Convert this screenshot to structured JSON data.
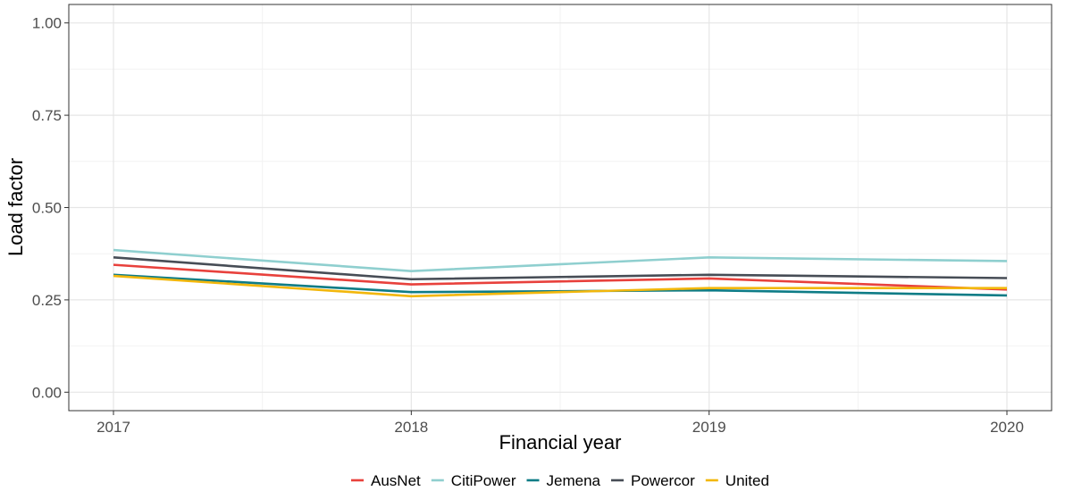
{
  "chart_data": {
    "type": "line",
    "xlabel": "Financial year",
    "ylabel": "Load factor",
    "x": [
      2017,
      2018,
      2019,
      2020
    ],
    "x_tick_labels": [
      "2017",
      "2018",
      "2019",
      "2020"
    ],
    "ylim": [
      0,
      1
    ],
    "y_ticks": [
      0,
      0.25,
      0.5,
      0.75,
      1
    ],
    "y_tick_labels": [
      "0.00",
      "0.25",
      "0.50",
      "0.75",
      "1.00"
    ],
    "grid": true,
    "legend_position": "bottom",
    "series": [
      {
        "name": "AusNet",
        "color": "#e8413c",
        "values": [
          0.345,
          0.292,
          0.308,
          0.278
        ]
      },
      {
        "name": "CitiPower",
        "color": "#8fcfcf",
        "values": [
          0.385,
          0.328,
          0.365,
          0.355
        ]
      },
      {
        "name": "Jemena",
        "color": "#0e7c86",
        "values": [
          0.318,
          0.271,
          0.276,
          0.262
        ]
      },
      {
        "name": "Powercor",
        "color": "#474d56",
        "values": [
          0.365,
          0.306,
          0.318,
          0.309
        ]
      },
      {
        "name": "United",
        "color": "#f2b70c",
        "values": [
          0.315,
          0.26,
          0.282,
          0.282
        ]
      }
    ]
  }
}
